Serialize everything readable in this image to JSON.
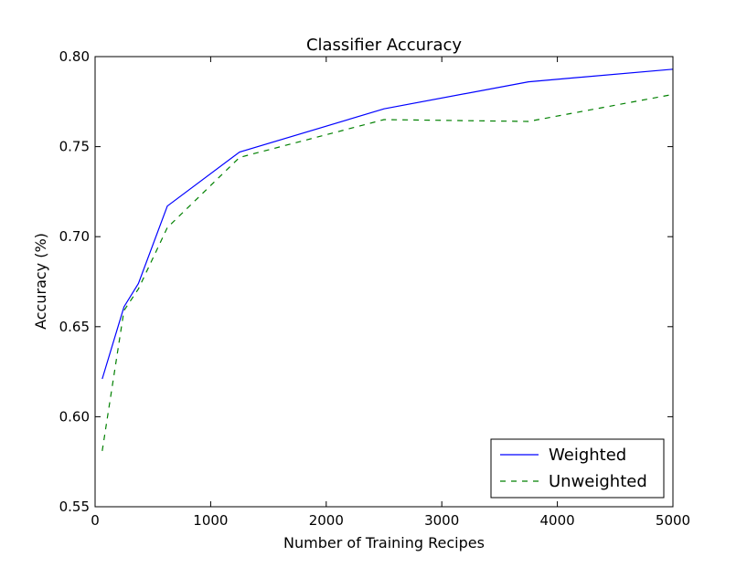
{
  "chart_data": {
    "type": "line",
    "title": "Classifier Accuracy",
    "xlabel": "Number of Training Recipes",
    "ylabel": "Accuracy (%)",
    "xlim": [
      0,
      5000
    ],
    "ylim": [
      0.55,
      0.8
    ],
    "xticks": [
      0,
      1000,
      2000,
      3000,
      4000,
      5000
    ],
    "xtick_labels": [
      "0",
      "1000",
      "2000",
      "3000",
      "4000",
      "5000"
    ],
    "yticks": [
      0.55,
      0.6,
      0.65,
      0.7,
      0.75,
      0.8
    ],
    "ytick_labels": [
      "0.55",
      "0.60",
      "0.65",
      "0.70",
      "0.75",
      "0.80"
    ],
    "grid": false,
    "legend_position": "lower-right",
    "series": [
      {
        "name": "Weighted",
        "color": "#0000ff",
        "style": "solid",
        "x": [
          62,
          250,
          375,
          625,
          1250,
          2500,
          3750,
          5000
        ],
        "y": [
          0.621,
          0.661,
          0.674,
          0.717,
          0.747,
          0.771,
          0.786,
          0.793
        ]
      },
      {
        "name": "Unweighted",
        "color": "#008000",
        "style": "dashed",
        "x": [
          62,
          250,
          375,
          625,
          1250,
          2500,
          3750,
          5000
        ],
        "y": [
          0.581,
          0.659,
          0.671,
          0.705,
          0.744,
          0.765,
          0.764,
          0.779
        ]
      }
    ]
  }
}
